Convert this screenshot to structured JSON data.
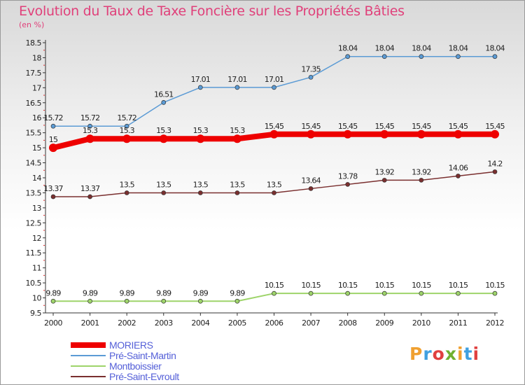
{
  "title": "Evolution du Taux de Taxe Foncière sur les Propriétés Bâties",
  "unit_label": "(en %)",
  "logo": {
    "text": "Proxiti",
    "colors": [
      "#f0a030",
      "#40a0e0",
      "#e04040",
      "#70b030",
      "#f0a030",
      "#40a0e0",
      "#e04040"
    ]
  },
  "chart_data": {
    "type": "line",
    "title": "Evolution du Taux de Taxe Foncière sur les Propriétés Bâties",
    "ylabel": "(en %)",
    "xlabel": "",
    "x": [
      "2000",
      "2001",
      "2002",
      "2003",
      "2004",
      "2005",
      "2006",
      "2007",
      "2008",
      "2009",
      "2010",
      "2011",
      "2012"
    ],
    "ylim": [
      9.5,
      18.5
    ],
    "yticks": [
      "9.5",
      "10",
      "10.5",
      "11",
      "11.5",
      "12",
      "12.5",
      "13",
      "13.5",
      "14",
      "14.5",
      "15",
      "15.5",
      "16",
      "16.5",
      "17",
      "17.5",
      "18",
      "18.5"
    ],
    "grid": false,
    "legend_position": "bottom-left",
    "series": [
      {
        "name": "Pré-Saint-Martin",
        "color": "#5b9bd5",
        "width": 1.5,
        "values": [
          15.72,
          15.72,
          15.72,
          16.51,
          17.01,
          17.01,
          17.01,
          17.35,
          18.04,
          18.04,
          18.04,
          18.04,
          18.04
        ],
        "labels": [
          "15.72",
          "15.72",
          "15.72",
          "16.51",
          "17.01",
          "17.01",
          "17.01",
          "17.35",
          "18.04",
          "18.04",
          "18.04",
          "18.04",
          "18.04"
        ]
      },
      {
        "name": "Pré-Saint-Evroult",
        "color": "#7a2f2f",
        "width": 1.5,
        "values": [
          13.37,
          13.37,
          13.5,
          13.5,
          13.5,
          13.5,
          13.5,
          13.64,
          13.78,
          13.92,
          13.92,
          14.06,
          14.2
        ],
        "labels": [
          "13.37",
          "13.37",
          "13.5",
          "13.5",
          "13.5",
          "13.5",
          "13.5",
          "13.64",
          "13.78",
          "13.92",
          "13.92",
          "14.06",
          "14.2"
        ]
      },
      {
        "name": "Montboissier",
        "color": "#9ed46a",
        "width": 2,
        "values": [
          9.89,
          9.89,
          9.89,
          9.89,
          9.89,
          9.89,
          10.15,
          10.15,
          10.15,
          10.15,
          10.15,
          10.15,
          10.15
        ],
        "labels": [
          "9.89",
          "9.89",
          "9.89",
          "9.89",
          "9.89",
          "9.89",
          "10.15",
          "10.15",
          "10.15",
          "10.15",
          "10.15",
          "10.15",
          "10.15"
        ]
      },
      {
        "name": "MORIERS",
        "color": "#ee0000",
        "width": 8,
        "values": [
          15,
          15.3,
          15.3,
          15.3,
          15.3,
          15.3,
          15.45,
          15.45,
          15.45,
          15.45,
          15.45,
          15.45,
          15.45
        ],
        "labels": [
          "15",
          "15.3",
          "15.3",
          "15.3",
          "15.3",
          "15.3",
          "15.45",
          "15.45",
          "15.45",
          "15.45",
          "15.45",
          "15.45",
          "15.45"
        ]
      }
    ],
    "legend": [
      "MORIERS",
      "Pré-Saint-Martin",
      "Montboissier",
      "Pré-Saint-Evroult"
    ]
  }
}
